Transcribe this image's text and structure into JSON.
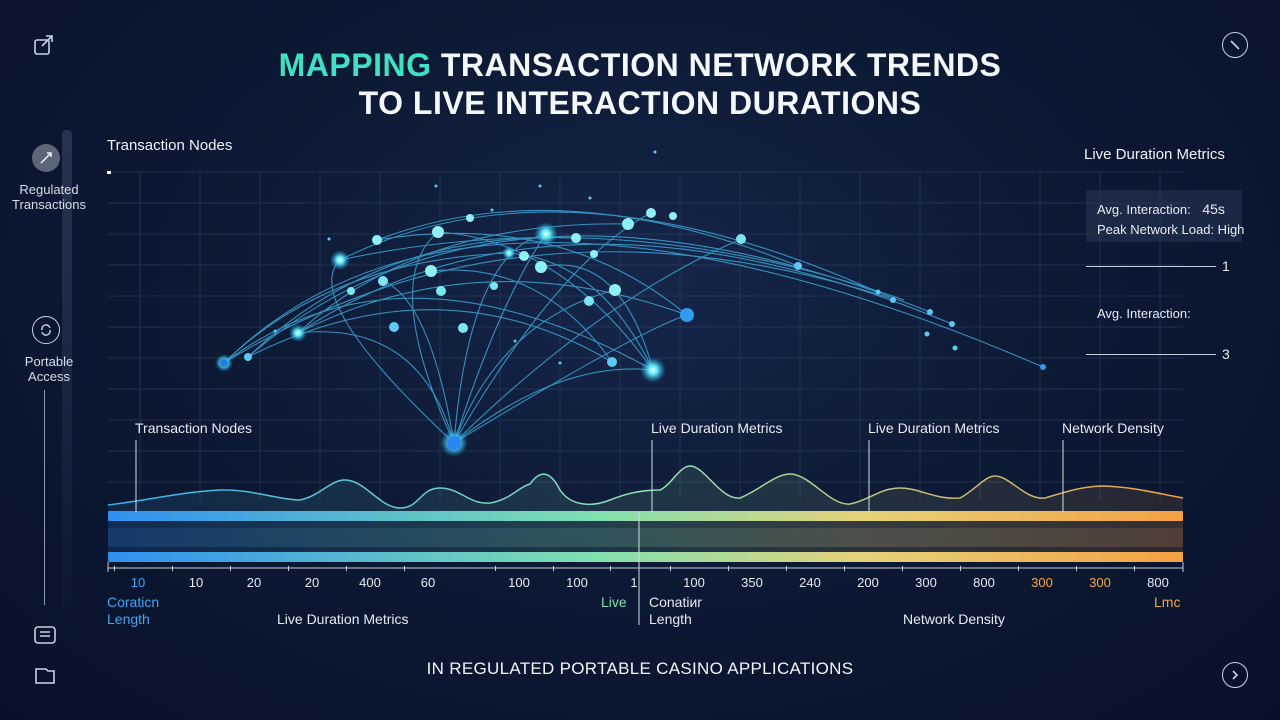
{
  "header": {
    "title_accent": "MAPPING",
    "title_rest": " TRANSACTION NETWORK TRENDS",
    "title_line2": "TO LIVE INTERACTION DURATIONS"
  },
  "sidebar": {
    "items": [
      {
        "label_line1": "Regulated",
        "label_line2": "Transactions",
        "icon": "rocket-icon"
      },
      {
        "label_line1": "Portable",
        "label_line2": "Access",
        "icon": "refresh-icon"
      }
    ]
  },
  "chart": {
    "top_left_label": "Transaction Nodes",
    "top_right_label": "Live Duration Metrics",
    "metrics": {
      "avg_interaction_label": "Avg. Interaction:",
      "avg_interaction_value": "45s",
      "peak_load": "Peak Network Load: High",
      "avg_interaction_label_2": "Avg. Interaction:",
      "marker_1": "1",
      "marker_3": "3"
    },
    "wave_labels": [
      "Transaction Nodes",
      "Live Duration Metrics",
      "Live Duration Metrics",
      "Network Density"
    ],
    "ticks": [
      "10",
      "10",
      "20",
      "20",
      "400",
      "60",
      "100",
      "100",
      "1",
      "100",
      "350",
      "240",
      "200",
      "300",
      "800",
      "300",
      "300",
      "800"
    ],
    "tick_colors": [
      "#3da8f5",
      "#e5ebf4",
      "#e5ebf4",
      "#e5ebf4",
      "#e5ebf4",
      "#e5ebf4",
      "#e5ebf4",
      "#e5ebf4",
      "#e5ebf4",
      "#e5ebf4",
      "#e5ebf4",
      "#e5ebf4",
      "#e5ebf4",
      "#e5ebf4",
      "#e5ebf4",
      "#f2a93f",
      "#f2a93f",
      "#e5ebf4"
    ],
    "bottom_labels": {
      "left_line1": "Coraticn",
      "left_line2": "Length",
      "mid_left": "Live Duration Metrics",
      "live": "Live",
      "center_line1": "Conatiиr",
      "center_line2": "Length",
      "right": "Network Density",
      "far_right": "Lmc"
    }
  },
  "footer": {
    "caption": "IN REGULATED PORTABLE CASINO APPLICATIONS"
  },
  "colors": {
    "accent": "#3fe0c4",
    "gradient_start": "#2f8ff0",
    "gradient_mid": "#7ee0b0",
    "gradient_end": "#f4a043"
  }
}
